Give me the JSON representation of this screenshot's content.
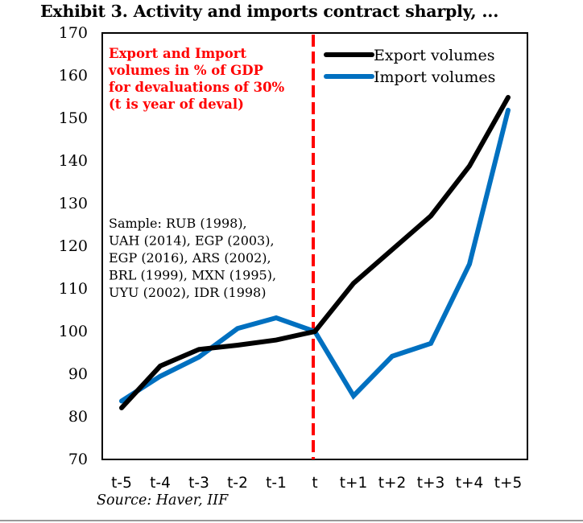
{
  "chart_data": {
    "type": "line",
    "title": "Exhibit 3. Activity and imports contract sharply, ...",
    "xlabel": "",
    "ylabel": "",
    "categories": [
      "t-5",
      "t-4",
      "t-3",
      "t-2",
      "t-1",
      "t",
      "t+1",
      "t+2",
      "t+3",
      "t+4",
      "t+5"
    ],
    "ylim": [
      70,
      170
    ],
    "yticks": [
      70,
      80,
      90,
      100,
      110,
      120,
      130,
      140,
      150,
      160,
      170
    ],
    "grid": false,
    "legend_position": "top-right",
    "series": [
      {
        "name": "Export volumes",
        "color": "#000000",
        "values": [
          82.1,
          91.9,
          95.8,
          96.8,
          98.0,
          100.0,
          111.3,
          119.2,
          127.1,
          138.8,
          154.9
        ]
      },
      {
        "name": "Import volumes",
        "color": "#0070C0",
        "values": [
          83.7,
          89.5,
          94.0,
          100.7,
          103.2,
          100.0,
          84.9,
          94.2,
          97.2,
          115.8,
          151.9
        ]
      }
    ],
    "reference_line": {
      "category": "t",
      "color": "#ff0000",
      "style": "dashed"
    },
    "annotations": [
      {
        "name": "description",
        "color": "#ff0000",
        "lines": [
          "Export and Import",
          "volumes in % of GDP",
          "for devaluations of 30%",
          "(t is year of deval)"
        ]
      },
      {
        "name": "sample",
        "color": "#000000",
        "lines": [
          "Sample: RUB (1998),",
          "UAH (2014), EGP (2003),",
          "EGP (2016), ARS (2002),",
          "BRL (1999), MXN (1995),",
          "UYU (2002), IDR (1998)"
        ]
      }
    ],
    "source": "Source: Haver, IIF"
  }
}
